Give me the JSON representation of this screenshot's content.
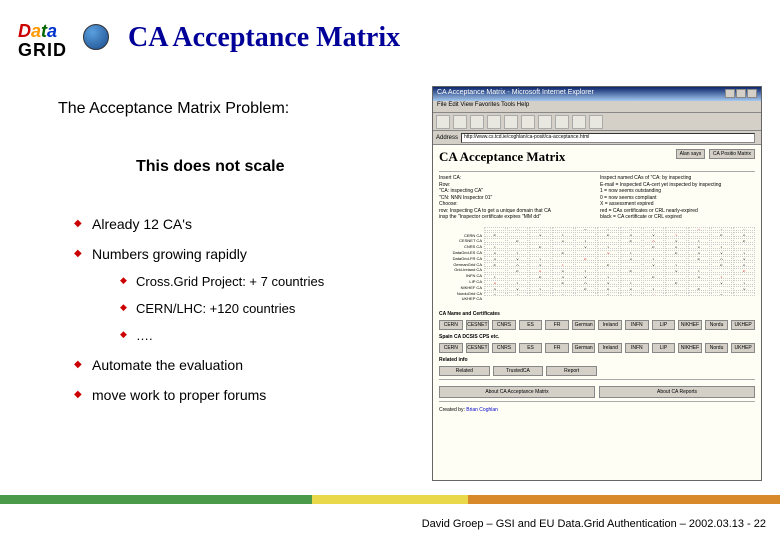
{
  "logo": {
    "text": "Data",
    "grid": "GRID"
  },
  "title": "CA Acceptance Matrix",
  "subtitle1": "The Acceptance Matrix Problem:",
  "subtitle2": "This does not scale",
  "bullets": [
    "Already 12 CA's",
    "Numbers growing rapidly",
    "Automate the evaluation",
    "move work to proper forums"
  ],
  "sub_bullets": [
    "Cross.Grid Project: + 7 countries",
    "CERN/LHC: +120 countries",
    "…."
  ],
  "footer": "David Groep – GSI and EU Data.Grid Authentication  – 2002.03.13  -  22",
  "browser": {
    "window_title": "CA Acceptance Matrix - Microsoft Internet Explorer",
    "menubar": "File   Edit   View   Favorites   Tools   Help",
    "toolbar_back": "← Back",
    "address_label": "Address",
    "address_url": "http://www.cs.tcd.ie/coghlan/ca-posit/ca-acceptance.html",
    "page_h1": "CA Acceptance Matrix",
    "top_buttons": [
      "Alan says",
      "CA Positio Matrix"
    ],
    "left_col": "Insert CA:\nRow:\n\"CA: inspecting CA\"\n\"CN: NNN Inspector 01\"\nChoose:\nrow: Inspecting CA to get a unique domain that CA\ninsp   the \"Inspector certificate expires \"MM dd\"",
    "right_col": "Inspect named CAs of \"CA: by inspecting\nE-mail = Inspected CA-cert yet inspected by inspecting\n1 = now   seems outstanding\n0 = now   seems compliant\nX = assessment expired\nred = CAs certificates or CRL nearly-expired\nblack = CA certificate or CRL expired",
    "row_labels": [
      "CERN CA",
      "CESNET CA",
      "CNRS CA",
      "DataGrid-ES CA",
      "DataGrid-FR CA",
      "GermanGrid CA",
      "Grid-Ireland CA",
      "INFN CA",
      "LIP CA",
      "NIKHEF CA",
      "NorduGrid CA",
      "UKHEP CA"
    ],
    "section1": "CA Name and Certificates",
    "btn_row1": [
      "CERN",
      "CESNET",
      "CNRS",
      "ES",
      "FR",
      "German",
      "Ireland",
      "INFN",
      "LIP",
      "NIKHEF",
      "Nordu",
      "UKHEP"
    ],
    "section2": "Spain CA DCSIS CPS etc.",
    "btn_row2": [
      "CERN",
      "CESNET",
      "CNRS",
      "ES",
      "FR",
      "German",
      "Ireland",
      "INFN",
      "LIP",
      "NIKHEF",
      "Nordu",
      "UKHEP"
    ],
    "section3": "Related info",
    "btn_row3": [
      "Related",
      "TrustedCA",
      "Report"
    ],
    "last_buttons": [
      "About CA Acceptance Matrix",
      "About CA Reports"
    ],
    "created_label": "Created by: ",
    "created_name": "Brian Coghlan"
  }
}
